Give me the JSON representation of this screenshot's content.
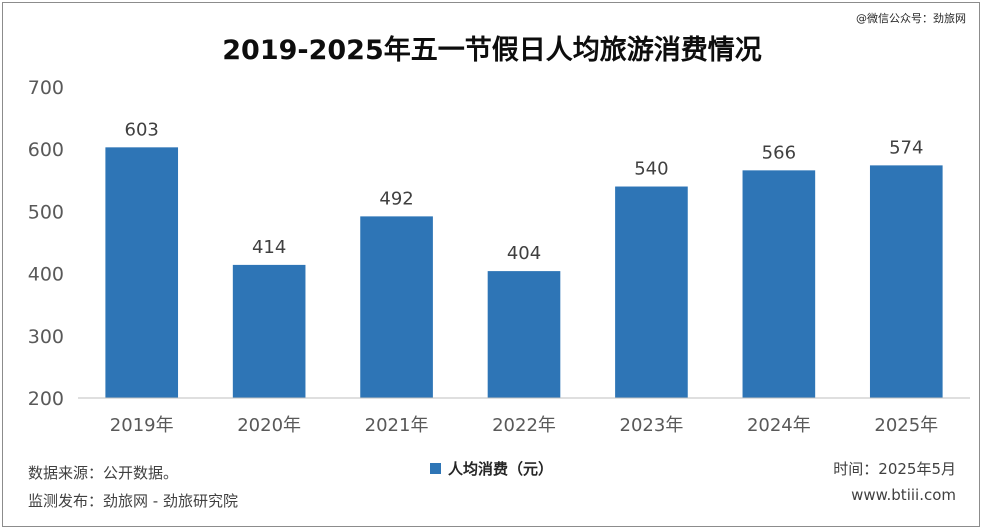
{
  "watermark": "@微信公众号：劲旅网",
  "chart_data": {
    "type": "bar",
    "title": "2019-2025年五一节假日人均旅游消费情况",
    "categories": [
      "2019年",
      "2020年",
      "2021年",
      "2022年",
      "2023年",
      "2024年",
      "2025年"
    ],
    "series": [
      {
        "name": "人均消费（元）",
        "values": [
          603,
          414,
          492,
          404,
          540,
          566,
          574
        ]
      }
    ],
    "ylim": [
      200,
      700
    ],
    "yticks": [
      200,
      300,
      400,
      500,
      600,
      700
    ],
    "xlabel": "",
    "ylabel": "",
    "grid": false,
    "legend": "bottom-center",
    "bar_color": "#2e75b6"
  },
  "footer": {
    "source": "数据来源：公开数据。",
    "monitor": "监测发布：劲旅网 - 劲旅研究院",
    "time": "时间：2025年5月",
    "site": "www.btiii.com"
  }
}
